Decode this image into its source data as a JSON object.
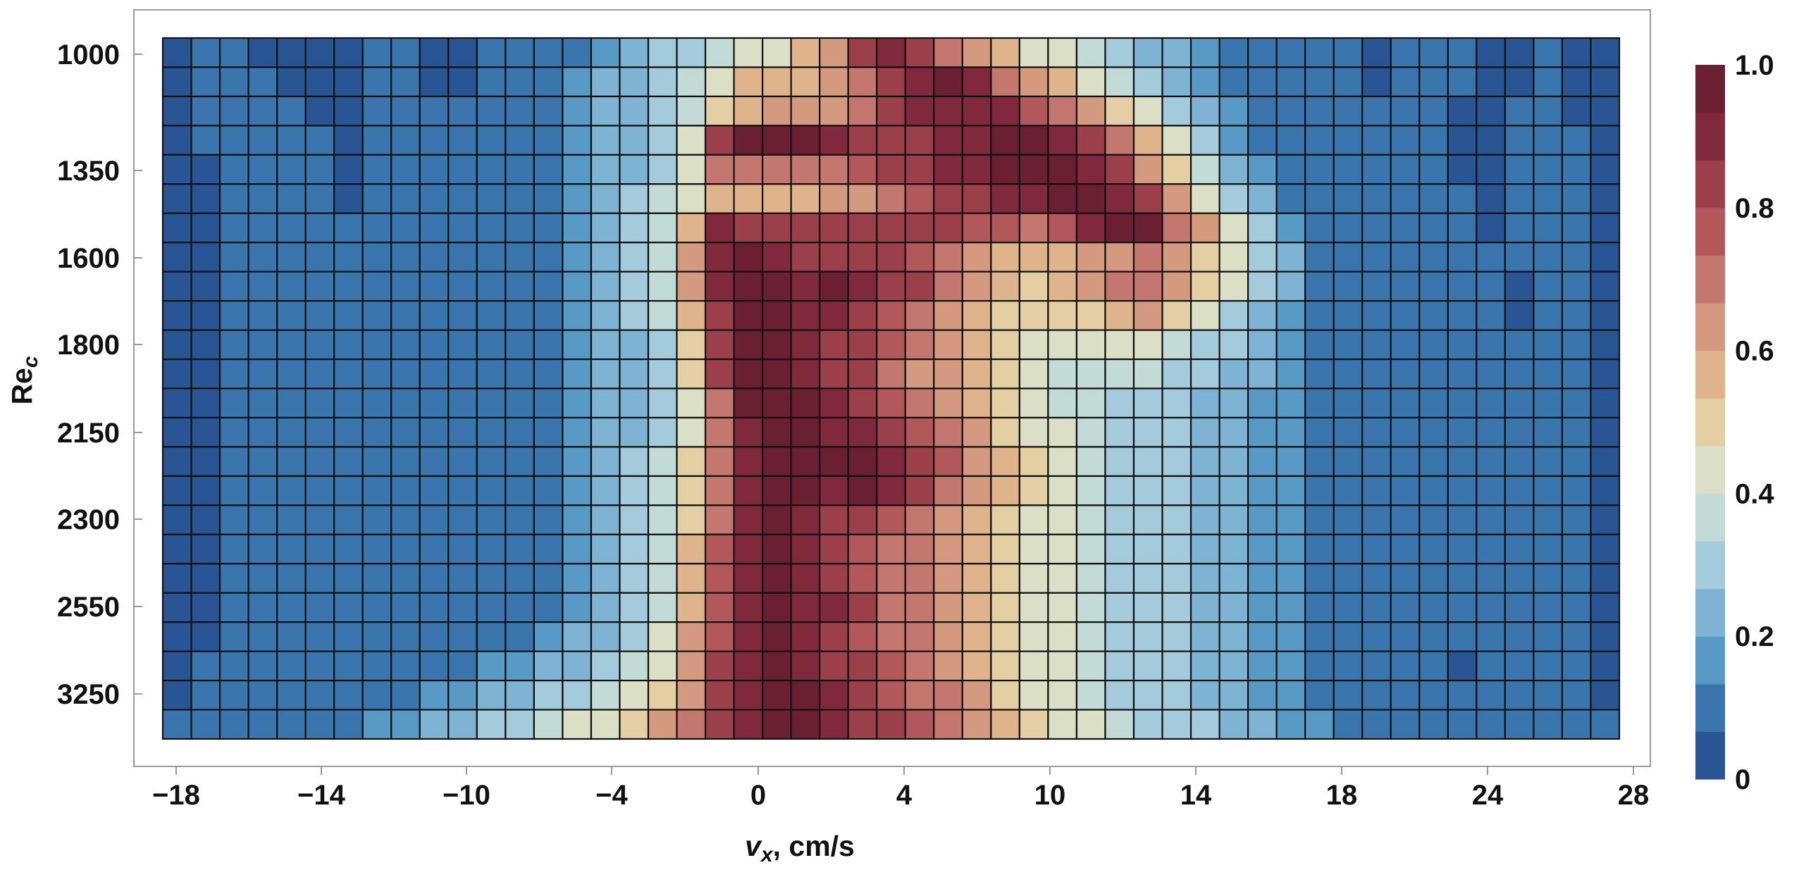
{
  "chart_data": {
    "type": "heatmap",
    "xlabel_var": "v",
    "xlabel_sub": "x",
    "xlabel_rest": ", cm/s",
    "ylabel_var": "Re",
    "ylabel_sub": "c",
    "x_tick_labels": [
      "−18",
      "−14",
      "−10",
      "−4",
      "0",
      "4",
      "10",
      "14",
      "18",
      "24",
      "28"
    ],
    "y_tick_labels": [
      "1000",
      "1350",
      "1600",
      "1800",
      "2150",
      "2300",
      "2550",
      "3250"
    ],
    "colorbar_tick_labels": [
      "0",
      "0.2",
      "0.4",
      "0.6",
      "0.8",
      "1.0"
    ],
    "colorbar_range": [
      0,
      1
    ],
    "color_levels": 15,
    "palette": [
      "#2a5595",
      "#3a75ae",
      "#5899c6",
      "#7eb3d4",
      "#a3cbdc",
      "#c3dbd6",
      "#dbdfc6",
      "#e4cea3",
      "#dfb38b",
      "#d49a80",
      "#c4776e",
      "#b2585b",
      "#9b3f4a",
      "#80293d",
      "#6b1f33"
    ],
    "columns": 51,
    "rows": 24,
    "grid": true,
    "legend": "colorbar-right",
    "values": [
      [
        0.03,
        0.07,
        0.07,
        0.03,
        0.03,
        0.03,
        0.03,
        0.07,
        0.07,
        0.03,
        0.03,
        0.07,
        0.1,
        0.1,
        0.12,
        0.15,
        0.2,
        0.27,
        0.3,
        0.37,
        0.4,
        0.45,
        0.55,
        0.65,
        0.82,
        0.88,
        0.83,
        0.68,
        0.6,
        0.55,
        0.45,
        0.4,
        0.35,
        0.3,
        0.25,
        0.2,
        0.17,
        0.12,
        0.1,
        0.07,
        0.07,
        0.07,
        0.03,
        0.07,
        0.07,
        0.07,
        0.03,
        0.03,
        0.07,
        0.03,
        0.03
      ],
      [
        0.03,
        0.07,
        0.07,
        0.07,
        0.03,
        0.03,
        0.03,
        0.07,
        0.07,
        0.03,
        0.03,
        0.07,
        0.1,
        0.12,
        0.15,
        0.2,
        0.25,
        0.3,
        0.38,
        0.45,
        0.55,
        0.55,
        0.57,
        0.62,
        0.72,
        0.82,
        0.87,
        0.95,
        0.87,
        0.72,
        0.62,
        0.55,
        0.45,
        0.38,
        0.32,
        0.25,
        0.18,
        0.12,
        0.1,
        0.07,
        0.07,
        0.07,
        0.03,
        0.07,
        0.07,
        0.07,
        0.03,
        0.03,
        0.07,
        0.03,
        0.03
      ],
      [
        0.03,
        0.07,
        0.07,
        0.07,
        0.07,
        0.03,
        0.03,
        0.07,
        0.07,
        0.07,
        0.07,
        0.07,
        0.1,
        0.12,
        0.15,
        0.2,
        0.25,
        0.3,
        0.38,
        0.48,
        0.55,
        0.6,
        0.62,
        0.65,
        0.72,
        0.82,
        0.87,
        0.9,
        0.93,
        0.88,
        0.78,
        0.72,
        0.6,
        0.5,
        0.42,
        0.32,
        0.2,
        0.15,
        0.1,
        0.07,
        0.07,
        0.07,
        0.07,
        0.07,
        0.07,
        0.03,
        0.03,
        0.07,
        0.07,
        0.03,
        0.03
      ],
      [
        0.03,
        0.07,
        0.07,
        0.07,
        0.07,
        0.07,
        0.03,
        0.07,
        0.07,
        0.07,
        0.07,
        0.07,
        0.1,
        0.12,
        0.15,
        0.2,
        0.25,
        0.32,
        0.42,
        0.85,
        0.95,
        0.95,
        0.97,
        0.9,
        0.85,
        0.82,
        0.85,
        0.88,
        0.92,
        0.95,
        0.95,
        0.92,
        0.85,
        0.72,
        0.55,
        0.4,
        0.27,
        0.18,
        0.12,
        0.1,
        0.07,
        0.07,
        0.07,
        0.07,
        0.07,
        0.03,
        0.03,
        0.07,
        0.07,
        0.07,
        0.03
      ],
      [
        0.03,
        0.03,
        0.07,
        0.07,
        0.07,
        0.07,
        0.03,
        0.07,
        0.07,
        0.07,
        0.07,
        0.07,
        0.1,
        0.12,
        0.15,
        0.2,
        0.25,
        0.33,
        0.45,
        0.72,
        0.72,
        0.72,
        0.7,
        0.72,
        0.75,
        0.8,
        0.85,
        0.9,
        0.92,
        0.95,
        0.98,
        0.95,
        0.9,
        0.82,
        0.65,
        0.5,
        0.35,
        0.22,
        0.15,
        0.1,
        0.07,
        0.07,
        0.07,
        0.07,
        0.07,
        0.03,
        0.03,
        0.07,
        0.07,
        0.07,
        0.03
      ],
      [
        0.03,
        0.03,
        0.07,
        0.07,
        0.07,
        0.07,
        0.03,
        0.07,
        0.07,
        0.07,
        0.07,
        0.07,
        0.1,
        0.12,
        0.15,
        0.2,
        0.27,
        0.35,
        0.45,
        0.55,
        0.55,
        0.55,
        0.58,
        0.62,
        0.65,
        0.7,
        0.75,
        0.8,
        0.82,
        0.88,
        0.92,
        0.97,
        0.95,
        0.93,
        0.85,
        0.62,
        0.45,
        0.3,
        0.2,
        0.12,
        0.1,
        0.07,
        0.07,
        0.07,
        0.07,
        0.07,
        0.03,
        0.07,
        0.07,
        0.07,
        0.03
      ],
      [
        0.03,
        0.03,
        0.07,
        0.07,
        0.07,
        0.07,
        0.07,
        0.07,
        0.07,
        0.07,
        0.07,
        0.07,
        0.1,
        0.12,
        0.15,
        0.2,
        0.27,
        0.35,
        0.55,
        0.9,
        0.85,
        0.8,
        0.8,
        0.8,
        0.82,
        0.85,
        0.85,
        0.82,
        0.78,
        0.75,
        0.72,
        0.78,
        0.92,
        0.97,
        0.95,
        0.72,
        0.6,
        0.42,
        0.3,
        0.18,
        0.12,
        0.1,
        0.07,
        0.07,
        0.07,
        0.07,
        0.03,
        0.07,
        0.07,
        0.07,
        0.03
      ],
      [
        0.03,
        0.03,
        0.07,
        0.07,
        0.07,
        0.07,
        0.07,
        0.07,
        0.07,
        0.07,
        0.07,
        0.07,
        0.1,
        0.12,
        0.15,
        0.2,
        0.27,
        0.37,
        0.65,
        0.92,
        0.97,
        0.9,
        0.85,
        0.85,
        0.85,
        0.82,
        0.78,
        0.72,
        0.62,
        0.55,
        0.55,
        0.55,
        0.6,
        0.65,
        0.68,
        0.6,
        0.5,
        0.4,
        0.3,
        0.2,
        0.12,
        0.1,
        0.07,
        0.07,
        0.07,
        0.07,
        0.07,
        0.07,
        0.07,
        0.07,
        0.03
      ],
      [
        0.03,
        0.03,
        0.07,
        0.07,
        0.07,
        0.07,
        0.07,
        0.07,
        0.07,
        0.07,
        0.07,
        0.07,
        0.1,
        0.12,
        0.15,
        0.2,
        0.27,
        0.37,
        0.6,
        0.9,
        0.97,
        0.95,
        0.9,
        0.97,
        0.92,
        0.85,
        0.82,
        0.72,
        0.62,
        0.55,
        0.52,
        0.55,
        0.6,
        0.68,
        0.72,
        0.62,
        0.5,
        0.4,
        0.3,
        0.2,
        0.12,
        0.1,
        0.07,
        0.07,
        0.07,
        0.07,
        0.07,
        0.03,
        0.07,
        0.07,
        0.03
      ],
      [
        0.03,
        0.03,
        0.07,
        0.07,
        0.07,
        0.07,
        0.07,
        0.07,
        0.07,
        0.07,
        0.07,
        0.07,
        0.1,
        0.12,
        0.15,
        0.2,
        0.27,
        0.35,
        0.55,
        0.85,
        0.95,
        0.95,
        0.9,
        0.9,
        0.85,
        0.78,
        0.72,
        0.65,
        0.58,
        0.52,
        0.5,
        0.5,
        0.52,
        0.58,
        0.6,
        0.52,
        0.42,
        0.32,
        0.25,
        0.18,
        0.12,
        0.1,
        0.07,
        0.07,
        0.07,
        0.07,
        0.07,
        0.03,
        0.07,
        0.07,
        0.03
      ],
      [
        0.03,
        0.03,
        0.07,
        0.07,
        0.07,
        0.07,
        0.07,
        0.07,
        0.07,
        0.07,
        0.07,
        0.07,
        0.1,
        0.12,
        0.15,
        0.2,
        0.25,
        0.32,
        0.5,
        0.82,
        0.97,
        0.97,
        0.92,
        0.85,
        0.8,
        0.75,
        0.7,
        0.62,
        0.55,
        0.5,
        0.45,
        0.42,
        0.42,
        0.42,
        0.42,
        0.38,
        0.32,
        0.27,
        0.22,
        0.17,
        0.12,
        0.1,
        0.07,
        0.07,
        0.07,
        0.07,
        0.07,
        0.07,
        0.07,
        0.07,
        0.03
      ],
      [
        0.03,
        0.03,
        0.07,
        0.07,
        0.07,
        0.07,
        0.07,
        0.07,
        0.07,
        0.07,
        0.07,
        0.07,
        0.1,
        0.12,
        0.15,
        0.2,
        0.25,
        0.32,
        0.48,
        0.8,
        0.97,
        0.97,
        0.92,
        0.85,
        0.8,
        0.72,
        0.65,
        0.6,
        0.55,
        0.48,
        0.42,
        0.38,
        0.38,
        0.38,
        0.35,
        0.32,
        0.27,
        0.22,
        0.2,
        0.15,
        0.12,
        0.1,
        0.07,
        0.07,
        0.07,
        0.07,
        0.07,
        0.07,
        0.07,
        0.07,
        0.03
      ],
      [
        0.03,
        0.03,
        0.07,
        0.07,
        0.07,
        0.07,
        0.07,
        0.07,
        0.07,
        0.07,
        0.07,
        0.07,
        0.1,
        0.12,
        0.15,
        0.2,
        0.25,
        0.32,
        0.45,
        0.72,
        0.95,
        0.97,
        0.95,
        0.88,
        0.82,
        0.75,
        0.68,
        0.6,
        0.55,
        0.48,
        0.42,
        0.38,
        0.35,
        0.32,
        0.3,
        0.27,
        0.25,
        0.2,
        0.17,
        0.15,
        0.12,
        0.1,
        0.07,
        0.07,
        0.07,
        0.07,
        0.07,
        0.07,
        0.07,
        0.07,
        0.03
      ],
      [
        0.03,
        0.03,
        0.07,
        0.07,
        0.07,
        0.07,
        0.07,
        0.07,
        0.07,
        0.07,
        0.07,
        0.07,
        0.1,
        0.12,
        0.15,
        0.2,
        0.25,
        0.33,
        0.45,
        0.7,
        0.92,
        0.97,
        0.95,
        0.9,
        0.88,
        0.82,
        0.75,
        0.68,
        0.6,
        0.52,
        0.45,
        0.4,
        0.35,
        0.32,
        0.3,
        0.27,
        0.25,
        0.2,
        0.17,
        0.15,
        0.12,
        0.1,
        0.07,
        0.07,
        0.07,
        0.07,
        0.07,
        0.07,
        0.07,
        0.07,
        0.03
      ],
      [
        0.03,
        0.03,
        0.07,
        0.07,
        0.07,
        0.07,
        0.07,
        0.07,
        0.07,
        0.07,
        0.07,
        0.07,
        0.1,
        0.12,
        0.15,
        0.2,
        0.27,
        0.35,
        0.5,
        0.72,
        0.9,
        0.95,
        0.95,
        0.97,
        0.97,
        0.9,
        0.85,
        0.75,
        0.65,
        0.55,
        0.48,
        0.42,
        0.37,
        0.32,
        0.3,
        0.27,
        0.25,
        0.2,
        0.17,
        0.15,
        0.12,
        0.1,
        0.07,
        0.07,
        0.07,
        0.07,
        0.07,
        0.07,
        0.07,
        0.07,
        0.03
      ],
      [
        0.03,
        0.03,
        0.07,
        0.07,
        0.07,
        0.07,
        0.07,
        0.07,
        0.07,
        0.07,
        0.07,
        0.07,
        0.1,
        0.12,
        0.15,
        0.2,
        0.27,
        0.35,
        0.5,
        0.72,
        0.9,
        0.97,
        0.95,
        0.9,
        0.95,
        0.9,
        0.8,
        0.7,
        0.62,
        0.55,
        0.48,
        0.42,
        0.37,
        0.32,
        0.3,
        0.27,
        0.25,
        0.2,
        0.17,
        0.15,
        0.12,
        0.1,
        0.07,
        0.07,
        0.07,
        0.07,
        0.07,
        0.07,
        0.07,
        0.07,
        0.03
      ],
      [
        0.03,
        0.03,
        0.07,
        0.07,
        0.07,
        0.07,
        0.07,
        0.07,
        0.07,
        0.07,
        0.07,
        0.07,
        0.1,
        0.12,
        0.15,
        0.2,
        0.27,
        0.35,
        0.52,
        0.72,
        0.92,
        0.97,
        0.92,
        0.85,
        0.82,
        0.78,
        0.72,
        0.65,
        0.58,
        0.52,
        0.45,
        0.4,
        0.35,
        0.32,
        0.3,
        0.27,
        0.25,
        0.2,
        0.17,
        0.15,
        0.12,
        0.1,
        0.07,
        0.07,
        0.07,
        0.07,
        0.07,
        0.07,
        0.07,
        0.07,
        0.03
      ],
      [
        0.03,
        0.03,
        0.07,
        0.07,
        0.07,
        0.07,
        0.07,
        0.07,
        0.07,
        0.07,
        0.07,
        0.07,
        0.1,
        0.12,
        0.15,
        0.2,
        0.27,
        0.37,
        0.55,
        0.75,
        0.92,
        0.97,
        0.9,
        0.82,
        0.78,
        0.72,
        0.68,
        0.62,
        0.55,
        0.5,
        0.45,
        0.4,
        0.35,
        0.32,
        0.3,
        0.27,
        0.25,
        0.2,
        0.17,
        0.15,
        0.12,
        0.1,
        0.07,
        0.07,
        0.07,
        0.07,
        0.07,
        0.07,
        0.07,
        0.07,
        0.03
      ],
      [
        0.03,
        0.03,
        0.07,
        0.07,
        0.07,
        0.07,
        0.07,
        0.07,
        0.07,
        0.07,
        0.07,
        0.07,
        0.1,
        0.12,
        0.15,
        0.2,
        0.27,
        0.37,
        0.55,
        0.75,
        0.92,
        0.97,
        0.92,
        0.85,
        0.78,
        0.72,
        0.68,
        0.62,
        0.55,
        0.5,
        0.45,
        0.4,
        0.35,
        0.32,
        0.3,
        0.27,
        0.25,
        0.2,
        0.17,
        0.15,
        0.12,
        0.1,
        0.07,
        0.07,
        0.07,
        0.07,
        0.07,
        0.07,
        0.07,
        0.07,
        0.03
      ],
      [
        0.03,
        0.03,
        0.07,
        0.07,
        0.07,
        0.07,
        0.07,
        0.07,
        0.07,
        0.07,
        0.07,
        0.07,
        0.1,
        0.12,
        0.15,
        0.2,
        0.27,
        0.37,
        0.57,
        0.78,
        0.92,
        0.97,
        0.92,
        0.88,
        0.8,
        0.72,
        0.68,
        0.62,
        0.55,
        0.5,
        0.45,
        0.4,
        0.35,
        0.32,
        0.3,
        0.27,
        0.25,
        0.2,
        0.17,
        0.15,
        0.12,
        0.1,
        0.07,
        0.07,
        0.07,
        0.07,
        0.07,
        0.07,
        0.07,
        0.07,
        0.03
      ],
      [
        0.03,
        0.03,
        0.07,
        0.07,
        0.07,
        0.07,
        0.07,
        0.07,
        0.1,
        0.1,
        0.12,
        0.12,
        0.12,
        0.15,
        0.2,
        0.25,
        0.3,
        0.4,
        0.6,
        0.78,
        0.92,
        0.97,
        0.92,
        0.85,
        0.78,
        0.72,
        0.68,
        0.62,
        0.55,
        0.5,
        0.45,
        0.4,
        0.35,
        0.32,
        0.3,
        0.27,
        0.25,
        0.2,
        0.17,
        0.15,
        0.12,
        0.1,
        0.1,
        0.07,
        0.07,
        0.07,
        0.07,
        0.07,
        0.07,
        0.07,
        0.03
      ],
      [
        0.03,
        0.07,
        0.07,
        0.07,
        0.07,
        0.07,
        0.1,
        0.1,
        0.1,
        0.12,
        0.12,
        0.15,
        0.17,
        0.2,
        0.25,
        0.3,
        0.35,
        0.45,
        0.62,
        0.8,
        0.92,
        0.97,
        0.92,
        0.85,
        0.8,
        0.75,
        0.7,
        0.65,
        0.58,
        0.52,
        0.45,
        0.4,
        0.35,
        0.32,
        0.3,
        0.27,
        0.25,
        0.2,
        0.17,
        0.15,
        0.12,
        0.1,
        0.1,
        0.1,
        0.07,
        0.03,
        0.07,
        0.07,
        0.07,
        0.07,
        0.03
      ],
      [
        0.03,
        0.07,
        0.07,
        0.07,
        0.07,
        0.07,
        0.1,
        0.12,
        0.12,
        0.15,
        0.17,
        0.2,
        0.25,
        0.27,
        0.3,
        0.37,
        0.42,
        0.5,
        0.65,
        0.8,
        0.92,
        0.97,
        0.97,
        0.9,
        0.82,
        0.78,
        0.72,
        0.68,
        0.6,
        0.52,
        0.45,
        0.4,
        0.35,
        0.32,
        0.3,
        0.27,
        0.25,
        0.2,
        0.17,
        0.15,
        0.12,
        0.1,
        0.1,
        0.1,
        0.07,
        0.07,
        0.07,
        0.07,
        0.07,
        0.07,
        0.03
      ],
      [
        0.07,
        0.07,
        0.07,
        0.12,
        0.12,
        0.07,
        0.12,
        0.15,
        0.17,
        0.2,
        0.25,
        0.27,
        0.3,
        0.35,
        0.4,
        0.45,
        0.5,
        0.6,
        0.7,
        0.85,
        0.92,
        0.97,
        0.97,
        0.9,
        0.85,
        0.8,
        0.75,
        0.72,
        0.65,
        0.55,
        0.5,
        0.45,
        0.4,
        0.35,
        0.32,
        0.3,
        0.27,
        0.22,
        0.2,
        0.17,
        0.15,
        0.12,
        0.12,
        0.12,
        0.1,
        0.1,
        0.1,
        0.12,
        0.12,
        0.12,
        0.12
      ]
    ]
  }
}
